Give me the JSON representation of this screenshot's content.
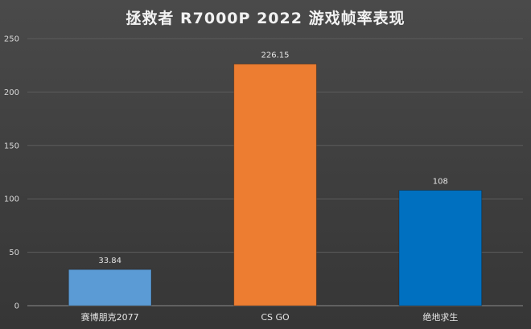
{
  "chart_data": {
    "type": "bar",
    "title": "拯救者 R7000P 2022 游戏帧率表现",
    "categories": [
      "赛博朋克2077",
      "CS GO",
      "绝地求生"
    ],
    "values": [
      33.84,
      226.15,
      108
    ],
    "value_labels": [
      "33.84",
      "226.15",
      "108"
    ],
    "bar_colors": [
      "#5b9bd5",
      "#ed7d31",
      "#0070c0"
    ],
    "ylim": [
      0,
      250
    ],
    "yticks": [
      0,
      50,
      100,
      150,
      200,
      250
    ],
    "grid": true,
    "legend": "none",
    "xlabel": "",
    "ylabel": ""
  }
}
